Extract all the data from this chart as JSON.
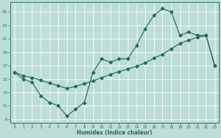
{
  "line1_x": [
    0,
    1,
    2,
    3,
    4,
    5,
    6,
    7,
    8,
    9,
    10,
    11,
    12,
    13,
    14,
    15,
    16,
    17,
    18,
    19,
    20,
    21,
    22,
    23
  ],
  "line1_y": [
    16,
    15,
    14.5,
    12.5,
    11.5,
    11,
    9.5,
    10.5,
    11.5,
    16,
    18,
    17.5,
    18,
    18,
    20,
    22.5,
    24.5,
    25.5,
    25,
    21.5,
    22,
    21.5,
    21.5,
    17
  ],
  "line2_x": [
    0,
    1,
    2,
    3,
    4,
    5,
    6,
    7,
    8,
    9,
    10,
    11,
    12,
    13,
    14,
    15,
    16,
    17,
    18,
    19,
    20,
    21,
    22,
    23
  ],
  "line2_y": [
    16,
    15.5,
    15.2,
    14.8,
    14.4,
    14.0,
    13.6,
    13.9,
    14.3,
    14.7,
    15.2,
    15.7,
    16.1,
    16.5,
    16.9,
    17.4,
    18.1,
    18.7,
    19.5,
    20.3,
    20.8,
    21.2,
    21.5,
    17
  ],
  "bg_color": "#bcddd8",
  "line_color": "#206b5a",
  "grid_color": "#ffffff",
  "xlabel": "Humidex (Indice chaleur)",
  "xlim": [
    -0.5,
    23.5
  ],
  "ylim": [
    8.5,
    26.5
  ],
  "yticks": [
    9,
    11,
    13,
    15,
    17,
    19,
    21,
    23,
    25
  ],
  "xticks": [
    0,
    1,
    2,
    3,
    4,
    5,
    6,
    7,
    8,
    9,
    10,
    11,
    12,
    13,
    14,
    15,
    16,
    17,
    18,
    19,
    20,
    21,
    22,
    23
  ]
}
